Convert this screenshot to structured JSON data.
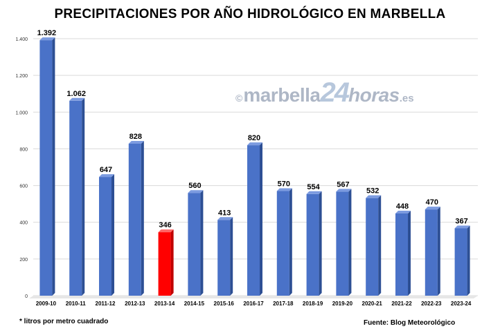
{
  "chart_data": {
    "type": "bar",
    "title": "PRECIPITACIONES POR AÑO HIDROLÓGICO EN MARBELLA",
    "categories": [
      "2009-10",
      "2010-11",
      "2011-12",
      "2012-13",
      "2013-14",
      "2014-15",
      "2015-16",
      "2016-17",
      "2017-18",
      "2018-19",
      "2019-20",
      "2020-21",
      "2021-22",
      "2022-23",
      "2023-24"
    ],
    "values": [
      1392,
      1062,
      647,
      828,
      346,
      560,
      413,
      820,
      570,
      554,
      567,
      532,
      448,
      470,
      367
    ],
    "data_labels": [
      "1.392",
      "1.062",
      "647",
      "828",
      "346",
      "560",
      "413",
      "820",
      "570",
      "554",
      "567",
      "532",
      "448",
      "470",
      "367"
    ],
    "yticks": [
      0,
      200,
      400,
      600,
      800,
      1000,
      1200,
      1400
    ],
    "ytick_labels": [
      "0",
      "200",
      "400",
      "600",
      "800",
      "1.000",
      "1.200",
      "1.400"
    ],
    "ylim": [
      0,
      1400
    ],
    "grid": true,
    "colors": {
      "bar": "#4a72c8",
      "highlight": "#ff0000"
    },
    "highlight_category": "2013-14",
    "footnote": "* litros por metro cuadrado",
    "source": "Fuente: Blog Meteorológico"
  },
  "watermark": {
    "copyright": "©",
    "name": "marbella",
    "number": "24",
    "suffix": "horas",
    "tld": ".es"
  }
}
